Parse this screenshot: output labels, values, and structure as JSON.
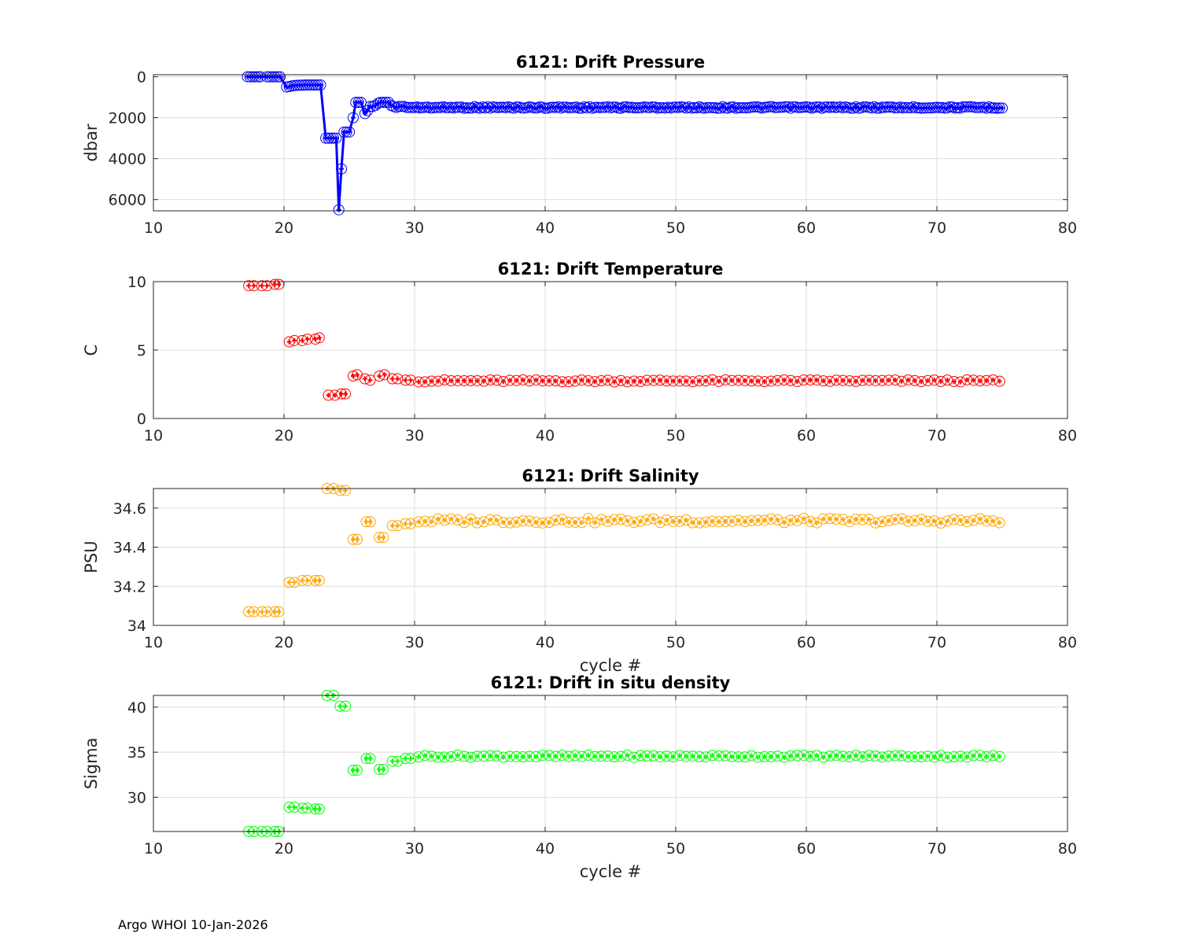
{
  "footer": "Argo WHOI 10-Jan-2026",
  "chart_data": [
    {
      "type": "line",
      "title": "6121: Drift Pressure",
      "ylabel": "dbar",
      "xlabel": "",
      "xlim": [
        10,
        80
      ],
      "ylim": [
        -100,
        6550
      ],
      "y_reversed": true,
      "xticks": [
        10,
        20,
        30,
        40,
        50,
        60,
        70,
        80
      ],
      "yticks": [
        0,
        2000,
        4000,
        6000
      ],
      "ytick_labels": [
        "0",
        "2000",
        "4000",
        "6000"
      ],
      "grid": true,
      "color": "#0000ff",
      "marker": "circle",
      "connected": true,
      "x": [
        17.2,
        17.4,
        17.6,
        17.8,
        18.0,
        18.2,
        18.7,
        18.9,
        19.1,
        19.3,
        19.5,
        19.7,
        20.2,
        20.4,
        20.6,
        20.8,
        21.0,
        21.2,
        21.4,
        21.6,
        21.8,
        22.0,
        22.2,
        22.4,
        22.6,
        22.8,
        23.2,
        23.4,
        23.6,
        23.8,
        24.0,
        24.2,
        24.4,
        24.6,
        24.8,
        25.0,
        25.3,
        25.5,
        25.7,
        25.9,
        26.2,
        26.4,
        26.6,
        26.8,
        27.0,
        27.2,
        27.4,
        27.6,
        27.8,
        28.0,
        28.2,
        28.4,
        28.6,
        28.8,
        29.0,
        29.2,
        29.4,
        29.6,
        29.8,
        30.0
      ],
      "y": [
        0,
        0,
        0,
        0,
        0,
        0,
        0,
        0,
        0,
        0,
        0,
        0,
        500,
        480,
        450,
        430,
        420,
        410,
        410,
        400,
        400,
        400,
        400,
        400,
        400,
        400,
        3000,
        3000,
        3000,
        3000,
        3000,
        6500,
        4500,
        2700,
        2700,
        2700,
        2000,
        1250,
        1250,
        1250,
        1800,
        1650,
        1450,
        1450,
        1400,
        1300,
        1250,
        1250,
        1250,
        1250,
        1400,
        1450,
        1500,
        1450,
        1450,
        1450,
        1500,
        1500,
        1500,
        1500
      ],
      "x_start_regular": 30.2,
      "x_step": 0.2,
      "x_end": 75.0,
      "regular_base": 1500,
      "regular_noise": 40
    },
    {
      "type": "scatter",
      "title": "6121: Drift Temperature",
      "ylabel": "C",
      "xlabel": "",
      "xlim": [
        10,
        80
      ],
      "ylim": [
        0,
        10
      ],
      "xticks": [
        10,
        20,
        30,
        40,
        50,
        60,
        70,
        80
      ],
      "yticks": [
        0,
        5,
        10
      ],
      "ytick_labels": [
        "0",
        "5",
        "10"
      ],
      "grid": true,
      "color": "#ff0000",
      "marker": "circle",
      "x": [
        17.3,
        17.7,
        18.3,
        18.7,
        19.3,
        19.6,
        20.4,
        20.8,
        21.4,
        21.8,
        22.4,
        22.7,
        23.4,
        23.9,
        24.4,
        24.7,
        25.3,
        25.6,
        26.2,
        26.6,
        27.3,
        27.7,
        28.3,
        28.7,
        29.3,
        29.7
      ],
      "y": [
        9.7,
        9.7,
        9.7,
        9.7,
        9.8,
        9.8,
        5.6,
        5.7,
        5.7,
        5.8,
        5.8,
        5.9,
        1.7,
        1.7,
        1.8,
        1.8,
        3.1,
        3.2,
        2.9,
        2.8,
        3.1,
        3.2,
        2.9,
        2.9,
        2.8,
        2.8
      ],
      "x_start_regular": 30.3,
      "x_step": 0.5,
      "x_end": 74.8,
      "regular_base": 2.75,
      "regular_noise": 0.08
    },
    {
      "type": "scatter",
      "title": "6121: Drift Salinity",
      "ylabel": "PSU",
      "xlabel": "cycle #",
      "xlim": [
        10,
        80
      ],
      "ylim": [
        34,
        34.7
      ],
      "xticks": [
        10,
        20,
        30,
        40,
        50,
        60,
        70,
        80
      ],
      "yticks": [
        34,
        34.2,
        34.4,
        34.6
      ],
      "ytick_labels": [
        "34",
        "34.2",
        "34.4",
        "34.6"
      ],
      "grid": true,
      "color": "#ffa500",
      "marker": "circle",
      "x": [
        17.3,
        17.7,
        18.3,
        18.7,
        19.3,
        19.6,
        20.4,
        20.8,
        21.4,
        21.8,
        22.4,
        22.7,
        23.3,
        23.8,
        24.3,
        24.7,
        25.3,
        25.6,
        26.3,
        26.6,
        27.3,
        27.6,
        28.3,
        28.7,
        29.3,
        29.7
      ],
      "y": [
        34.07,
        34.07,
        34.07,
        34.07,
        34.07,
        34.07,
        34.22,
        34.22,
        34.23,
        34.23,
        34.23,
        34.23,
        34.7,
        34.7,
        34.69,
        34.69,
        34.44,
        34.44,
        34.53,
        34.53,
        34.45,
        34.45,
        34.51,
        34.51,
        34.52,
        34.52
      ],
      "x_start_regular": 30.3,
      "x_step": 0.5,
      "x_end": 74.8,
      "regular_base": 34.535,
      "regular_noise": 0.012
    },
    {
      "type": "scatter",
      "title": "6121: Drift in situ density",
      "ylabel": "Sigma",
      "xlabel": "cycle #",
      "xlim": [
        10,
        80
      ],
      "ylim": [
        26.2,
        41.3
      ],
      "xticks": [
        10,
        20,
        30,
        40,
        50,
        60,
        70,
        80
      ],
      "yticks": [
        30,
        35,
        40
      ],
      "ytick_labels": [
        "30",
        "35",
        "40"
      ],
      "grid": true,
      "color": "#00ff00",
      "marker": "circle",
      "x": [
        17.3,
        17.7,
        18.3,
        18.7,
        19.3,
        19.6,
        20.4,
        20.8,
        21.4,
        21.8,
        22.4,
        22.7,
        23.3,
        23.8,
        24.3,
        24.7,
        25.3,
        25.6,
        26.3,
        26.6,
        27.3,
        27.6,
        28.3,
        28.7,
        29.3,
        29.7
      ],
      "y": [
        26.2,
        26.2,
        26.2,
        26.2,
        26.2,
        26.2,
        28.9,
        28.9,
        28.8,
        28.8,
        28.7,
        28.7,
        41.3,
        41.3,
        40.1,
        40.1,
        33.0,
        33.0,
        34.3,
        34.3,
        33.1,
        33.1,
        34.0,
        34.0,
        34.3,
        34.3
      ],
      "x_start_regular": 30.3,
      "x_step": 0.5,
      "x_end": 74.8,
      "regular_base": 34.55,
      "regular_noise": 0.12
    }
  ]
}
